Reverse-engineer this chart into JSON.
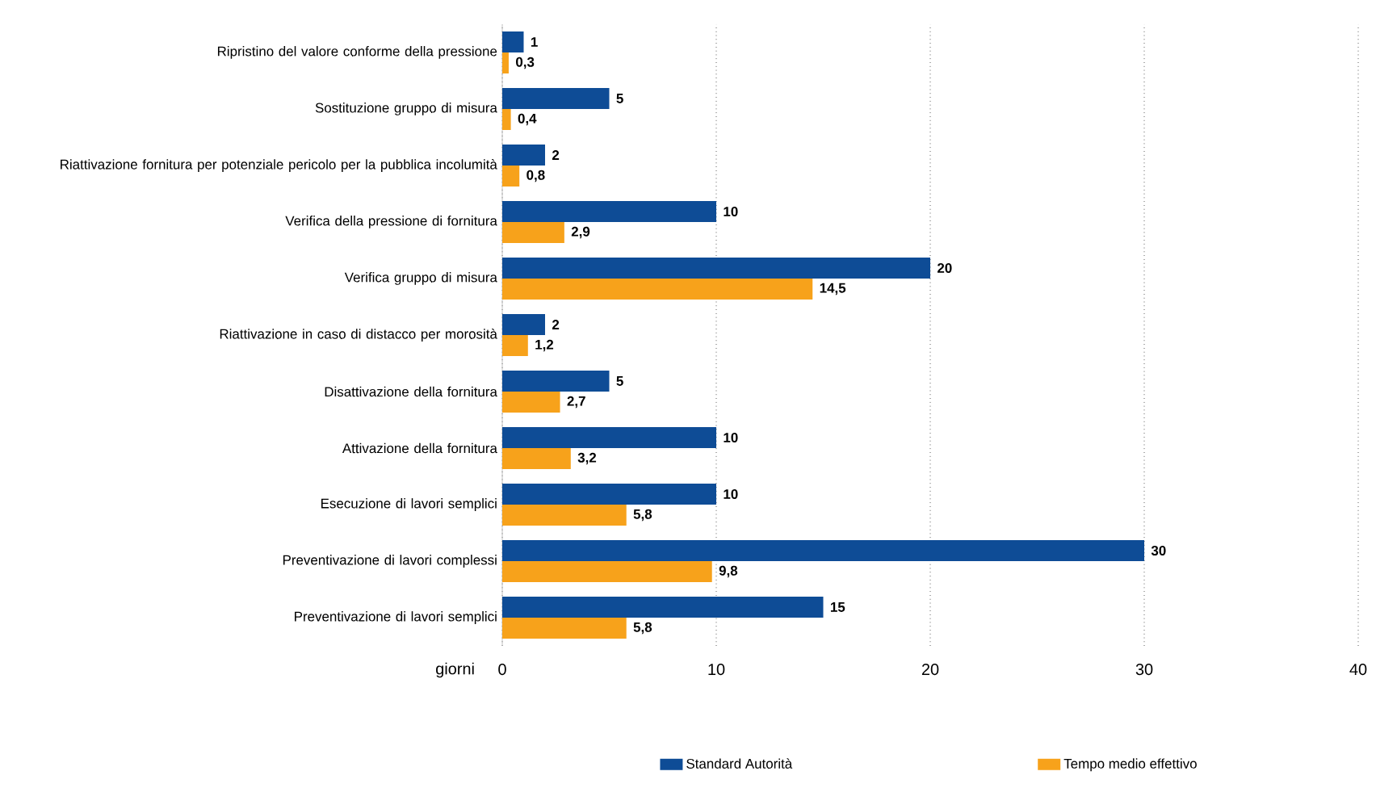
{
  "chart_data": {
    "type": "bar",
    "orientation": "horizontal",
    "categories": [
      "Ripristino del valore conforme della pressione",
      "Sostituzione gruppo di misura",
      "Riattivazione fornitura per potenziale pericolo per la pubblica incolumità",
      "Verifica della pressione di fornitura",
      "Verifica gruppo di misura",
      "Riattivazione in caso di distacco per morosità",
      "Disattivazione della fornitura",
      "Attivazione della fornitura",
      "Esecuzione di lavori semplici",
      "Preventivazione di lavori complessi",
      "Preventivazione di lavori semplici"
    ],
    "series": [
      {
        "name": "Standard Autorità",
        "color": "#0e4c96",
        "values": [
          1,
          5,
          2,
          10,
          20,
          2,
          5,
          10,
          10,
          30,
          15
        ],
        "value_labels": [
          "1",
          "5",
          "2",
          "10",
          "20",
          "2",
          "5",
          "10",
          "10",
          "30",
          "15"
        ]
      },
      {
        "name": "Tempo medio effettivo",
        "color": "#f7a21b",
        "values": [
          0.3,
          0.4,
          0.8,
          2.9,
          14.5,
          1.2,
          2.7,
          3.2,
          5.8,
          9.8,
          5.8
        ],
        "value_labels": [
          "0,3",
          "0,4",
          "0,8",
          "2,9",
          "14,5",
          "1,2",
          "2,7",
          "3,2",
          "5,8",
          "9,8",
          "5,8"
        ]
      }
    ],
    "xlabel": "giorni",
    "xlim": [
      0,
      40
    ],
    "xticks": [
      0,
      10,
      20,
      30,
      40
    ],
    "grid": "x",
    "legend": "bottom"
  }
}
